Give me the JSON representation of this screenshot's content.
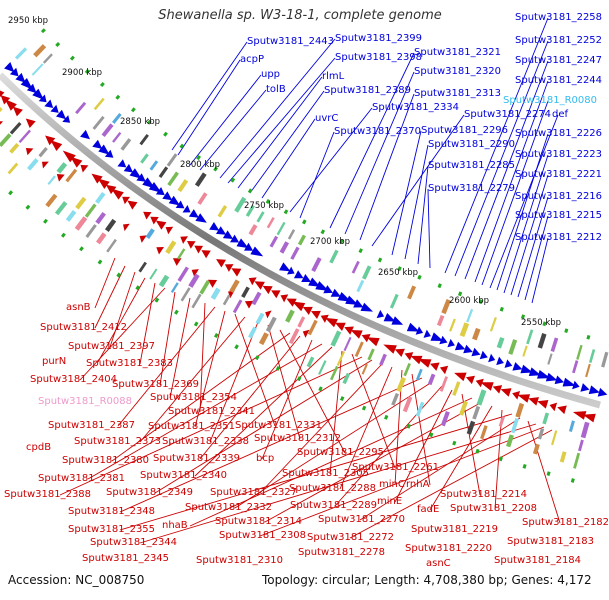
{
  "title": "Shewanella sp. W3-18-1, complete genome",
  "footer": {
    "accession": "Accession: NC_008750",
    "summary": "Topology: circular; Length: 4,708,380 bp; Genes: 4,172"
  },
  "colors": {
    "forward": "#0000dd",
    "reverse": "#cc0000",
    "rna": "#33bbee",
    "pseudo": "#ee99cc",
    "backbone": "#888888"
  },
  "kbp_ticks": [
    "2950 kbp",
    "2900 kbp",
    "2850 kbp",
    "2800 kbp",
    "2750 kbp",
    "2700 kbp",
    "2650 kbp",
    "2600 kbp",
    "2550 kbp"
  ],
  "labels_forward_strand": [
    "Sputw3181_2443",
    "acpP",
    "upp",
    "tolB",
    "Sputw3181_2399",
    "Sputw3181_2398",
    "rlmL",
    "Sputw3181_2389",
    "uvrC",
    "Sputw3181_2334",
    "Sputw3181_2370",
    "Sputw3181_2321",
    "Sputw3181_2320",
    "Sputw3181_2313",
    "Sputw3181_2274",
    "Sputw3181_2296",
    "Sputw3181_2290",
    "Sputw3181_2285",
    "Sputw3181_2279",
    "Sputw3181_2258",
    "Sputw3181_2252",
    "Sputw3181_2247",
    "Sputw3181_2244",
    "Sputw3181_R0080",
    "def",
    "Sputw3181_2226",
    "Sputw3181_2223",
    "Sputw3181_2221",
    "Sputw3181_2216",
    "Sputw3181_2215",
    "Sputw3181_2212"
  ],
  "labels_reverse_strand": [
    "asnB",
    "Sputw3181_2412",
    "Sputw3181_2397",
    "purN",
    "Sputw3181_2383",
    "Sputw3181_2404",
    "Sputw3181_2369",
    "Sputw3181_R0088",
    "Sputw3181_2354",
    "Sputw3181_2341",
    "Sputw3181_2387",
    "Sputw3181_2351",
    "Sputw3181_2331",
    "Sputw3181_2373",
    "Sputw3181_2338",
    "Sputw3181_2312",
    "cpdB",
    "Sputw3181_2295",
    "Sputw3181_2380",
    "Sputw3181_2339",
    "bcp",
    "Sputw3181_2381",
    "Sputw3181_2340",
    "Sputw3181_2305",
    "Sputw3181_2261",
    "Sputw3181_2388",
    "Sputw3181_2349",
    "Sputw3181_2327",
    "Sputw3181_2288",
    "minC",
    "rnhA",
    "Sputw3181_2348",
    "Sputw3181_2332",
    "Sputw3181_2289",
    "minE",
    "Sputw3181_2214",
    "nhaB",
    "Sputw3181_2314",
    "fadE",
    "Sputw3181_2208",
    "Sputw3181_2355",
    "Sputw3181_2270",
    "Sputw3181_2182",
    "Sputw3181_2344",
    "Sputw3181_2308",
    "Sputw3181_2272",
    "Sputw3181_2219",
    "Sputw3181_2310",
    "Sputw3181_2278",
    "Sputw3181_2220",
    "asnC",
    "Sputw3181_2183",
    "Sputw3181_2345",
    "Sputw3181_2184"
  ]
}
